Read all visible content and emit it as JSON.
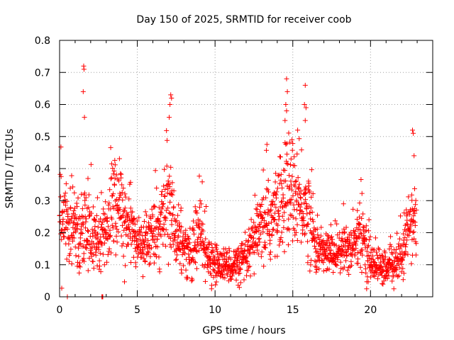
{
  "chart_data": {
    "type": "scatter",
    "title": "Day 150 of 2025, SRMTID for receiver coob",
    "xlabel": "GPS time / hours",
    "ylabel": "SRMTID / TECUs",
    "xlim": [
      0,
      24
    ],
    "ylim": [
      0,
      0.8
    ],
    "xticks": [
      0,
      5,
      10,
      15,
      20
    ],
    "xtick_labels": [
      "0",
      "5",
      "10",
      "15",
      "20"
    ],
    "yticks": [
      0,
      0.1,
      0.2,
      0.3,
      0.4,
      0.5,
      0.6,
      0.7,
      0.8
    ],
    "ytick_labels": [
      "0",
      "0.1",
      "0.2",
      "0.3",
      "0.4",
      "0.5",
      "0.6",
      "0.7",
      "0.8"
    ],
    "grid": true,
    "marker": "+",
    "marker_color": "#ff0000",
    "series": [
      {
        "name": "SRMTID",
        "x_start": 0.0,
        "x_end": 22.95,
        "sample_interval_hours": 0.0125,
        "seed": 150,
        "profile_hours": [
          0,
          0.3,
          0.8,
          1.2,
          1.5,
          2.0,
          2.5,
          3.0,
          3.5,
          4.0,
          4.5,
          5.0,
          5.5,
          6.0,
          6.5,
          7.0,
          7.5,
          8.0,
          8.5,
          9.0,
          9.5,
          10.0,
          10.5,
          11.0,
          11.5,
          12.0,
          12.5,
          13.0,
          13.5,
          14.0,
          14.5,
          15.0,
          15.5,
          16.0,
          16.5,
          17.0,
          17.5,
          18.0,
          18.5,
          19.0,
          19.5,
          20.0,
          20.5,
          21.0,
          21.5,
          22.0,
          22.5,
          23.0
        ],
        "profile_center": [
          0.26,
          0.24,
          0.22,
          0.2,
          0.2,
          0.19,
          0.19,
          0.22,
          0.28,
          0.25,
          0.22,
          0.17,
          0.16,
          0.19,
          0.26,
          0.3,
          0.2,
          0.15,
          0.14,
          0.2,
          0.12,
          0.1,
          0.1,
          0.1,
          0.1,
          0.11,
          0.17,
          0.21,
          0.24,
          0.26,
          0.32,
          0.33,
          0.28,
          0.27,
          0.15,
          0.14,
          0.14,
          0.14,
          0.15,
          0.17,
          0.18,
          0.11,
          0.1,
          0.08,
          0.1,
          0.13,
          0.22,
          0.24
        ],
        "profile_spread": [
          0.13,
          0.12,
          0.11,
          0.11,
          0.11,
          0.1,
          0.1,
          0.11,
          0.13,
          0.11,
          0.09,
          0.07,
          0.07,
          0.08,
          0.12,
          0.15,
          0.09,
          0.07,
          0.07,
          0.11,
          0.06,
          0.05,
          0.05,
          0.05,
          0.05,
          0.06,
          0.09,
          0.1,
          0.12,
          0.13,
          0.16,
          0.16,
          0.13,
          0.13,
          0.07,
          0.06,
          0.06,
          0.07,
          0.08,
          0.08,
          0.09,
          0.06,
          0.05,
          0.04,
          0.05,
          0.06,
          0.1,
          0.11
        ],
        "highlight_points": [
          {
            "x": 1.55,
            "y": 0.72
          },
          {
            "x": 1.57,
            "y": 0.71
          },
          {
            "x": 1.52,
            "y": 0.64
          },
          {
            "x": 1.6,
            "y": 0.56
          },
          {
            "x": 7.15,
            "y": 0.63
          },
          {
            "x": 7.2,
            "y": 0.62
          },
          {
            "x": 7.1,
            "y": 0.6
          },
          {
            "x": 7.05,
            "y": 0.56
          },
          {
            "x": 14.6,
            "y": 0.68
          },
          {
            "x": 14.65,
            "y": 0.64
          },
          {
            "x": 14.55,
            "y": 0.6
          },
          {
            "x": 14.6,
            "y": 0.58
          },
          {
            "x": 14.5,
            "y": 0.55
          },
          {
            "x": 15.8,
            "y": 0.66
          },
          {
            "x": 15.75,
            "y": 0.6
          },
          {
            "x": 15.85,
            "y": 0.59
          },
          {
            "x": 15.8,
            "y": 0.55
          },
          {
            "x": 22.7,
            "y": 0.52
          },
          {
            "x": 22.75,
            "y": 0.51
          },
          {
            "x": 22.8,
            "y": 0.44
          },
          {
            "x": 0.5,
            "y": 0.0
          },
          {
            "x": 2.75,
            "y": 0.0
          },
          {
            "x": 2.78,
            "y": 0.0
          },
          {
            "x": 2.72,
            "y": 0.0
          }
        ]
      }
    ]
  }
}
